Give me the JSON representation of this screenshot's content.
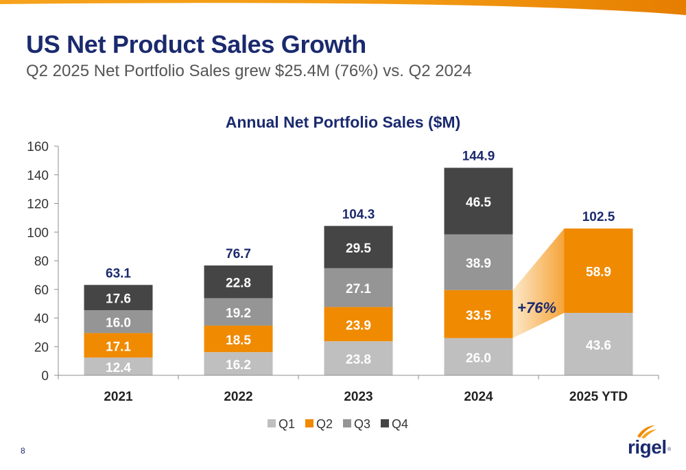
{
  "slide": {
    "title": "US Net Product Sales Growth",
    "subtitle": "Q2 2025 Net Portfolio Sales grew $25.4M (76%) vs. Q2 2024",
    "page_number": "8",
    "logo_text": "rigel",
    "logo_mark": "®"
  },
  "colors": {
    "Q1": "#bfbfbf",
    "Q2": "#f08a00",
    "Q3": "#959595",
    "Q4": "#454545",
    "title": "#1b2a6e",
    "brand_orange": "#f08a00"
  },
  "chart_data": {
    "type": "bar",
    "stacked": true,
    "title": "Annual Net Portfolio Sales ($M)",
    "categories": [
      "2021",
      "2022",
      "2023",
      "2024",
      "2025 YTD"
    ],
    "series": [
      {
        "name": "Q1",
        "values": [
          12.4,
          16.2,
          23.8,
          26.0,
          43.6
        ]
      },
      {
        "name": "Q2",
        "values": [
          17.1,
          18.5,
          23.9,
          33.5,
          58.9
        ]
      },
      {
        "name": "Q3",
        "values": [
          16.0,
          19.2,
          27.1,
          38.9,
          null
        ]
      },
      {
        "name": "Q4",
        "values": [
          17.6,
          22.8,
          29.5,
          46.5,
          null
        ]
      }
    ],
    "totals": [
      63.1,
      76.7,
      104.3,
      144.9,
      102.5
    ],
    "ylim": [
      0,
      160
    ],
    "yticks": [
      0,
      20,
      40,
      60,
      80,
      100,
      120,
      140,
      160
    ],
    "legend_position": "bottom",
    "grid": false,
    "annotation": {
      "text": "+76%",
      "from": "2024 Q2",
      "to": "2025 YTD Q2"
    }
  }
}
